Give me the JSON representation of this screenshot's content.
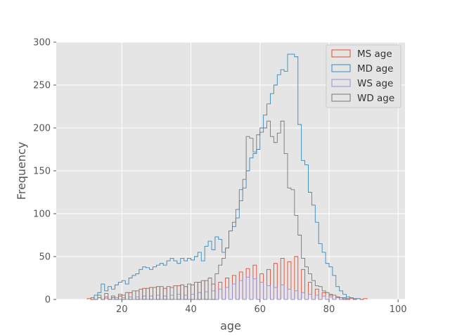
{
  "chart_data": {
    "type": "histogram",
    "style": "step",
    "title": "",
    "xlabel": "age",
    "ylabel": "Frequency",
    "xlim": [
      1,
      102
    ],
    "ylim": [
      0,
      300
    ],
    "xticks": [
      20,
      40,
      60,
      80,
      100
    ],
    "yticks": [
      0,
      50,
      100,
      150,
      200,
      250,
      300
    ],
    "grid": true,
    "legend": "top-right",
    "bin_width": 1,
    "series": [
      {
        "name": "MS age",
        "color": "#E24A33",
        "bins": [
          [
            10,
            1
          ],
          [
            13,
            2
          ],
          [
            15,
            3
          ],
          [
            17,
            2
          ],
          [
            19,
            4
          ],
          [
            20,
            5
          ],
          [
            22,
            8
          ],
          [
            24,
            10
          ],
          [
            26,
            13
          ],
          [
            28,
            14
          ],
          [
            30,
            15
          ],
          [
            32,
            13
          ],
          [
            34,
            14
          ],
          [
            36,
            16
          ],
          [
            38,
            15
          ],
          [
            40,
            17
          ],
          [
            42,
            20
          ],
          [
            44,
            22
          ],
          [
            46,
            18
          ],
          [
            48,
            20
          ],
          [
            50,
            25
          ],
          [
            52,
            28
          ],
          [
            54,
            32
          ],
          [
            56,
            36
          ],
          [
            58,
            40
          ],
          [
            60,
            30
          ],
          [
            62,
            35
          ],
          [
            64,
            42
          ],
          [
            66,
            48
          ],
          [
            68,
            44
          ],
          [
            70,
            50
          ],
          [
            72,
            35
          ],
          [
            74,
            20
          ],
          [
            76,
            12
          ],
          [
            78,
            8
          ],
          [
            80,
            5
          ],
          [
            82,
            3
          ],
          [
            84,
            2
          ],
          [
            86,
            1
          ],
          [
            88,
            1
          ],
          [
            90,
            1
          ]
        ]
      },
      {
        "name": "MD age",
        "color": "#348ABD",
        "bins": [
          [
            12,
            5
          ],
          [
            13,
            8
          ],
          [
            14,
            18
          ],
          [
            15,
            10
          ],
          [
            16,
            15
          ],
          [
            17,
            12
          ],
          [
            18,
            17
          ],
          [
            19,
            20
          ],
          [
            20,
            22
          ],
          [
            21,
            18
          ],
          [
            22,
            25
          ],
          [
            23,
            28
          ],
          [
            24,
            30
          ],
          [
            25,
            35
          ],
          [
            26,
            38
          ],
          [
            27,
            37
          ],
          [
            28,
            35
          ],
          [
            29,
            38
          ],
          [
            30,
            40
          ],
          [
            31,
            42
          ],
          [
            32,
            40
          ],
          [
            33,
            45
          ],
          [
            34,
            48
          ],
          [
            35,
            45
          ],
          [
            36,
            42
          ],
          [
            37,
            48
          ],
          [
            38,
            45
          ],
          [
            39,
            48
          ],
          [
            40,
            46
          ],
          [
            41,
            50
          ],
          [
            42,
            55
          ],
          [
            43,
            45
          ],
          [
            44,
            62
          ],
          [
            45,
            68
          ],
          [
            46,
            58
          ],
          [
            47,
            73
          ],
          [
            48,
            70
          ],
          [
            49,
            55
          ],
          [
            50,
            60
          ],
          [
            51,
            80
          ],
          [
            52,
            85
          ],
          [
            53,
            95
          ],
          [
            54,
            115
          ],
          [
            55,
            130
          ],
          [
            56,
            150
          ],
          [
            57,
            165
          ],
          [
            58,
            170
          ],
          [
            59,
            175
          ],
          [
            60,
            200
          ],
          [
            61,
            215
          ],
          [
            62,
            228
          ],
          [
            63,
            240
          ],
          [
            64,
            250
          ],
          [
            65,
            262
          ],
          [
            66,
            268
          ],
          [
            67,
            266
          ],
          [
            68,
            286
          ],
          [
            69,
            286
          ],
          [
            70,
            283
          ],
          [
            71,
            204
          ],
          [
            72,
            162
          ],
          [
            73,
            157
          ],
          [
            74,
            125
          ],
          [
            75,
            110
          ],
          [
            76,
            90
          ],
          [
            77,
            65
          ],
          [
            78,
            55
          ],
          [
            79,
            42
          ],
          [
            80,
            38
          ],
          [
            81,
            28
          ],
          [
            82,
            15
          ],
          [
            83,
            10
          ],
          [
            84,
            6
          ],
          [
            85,
            3
          ],
          [
            86,
            2
          ],
          [
            87,
            1
          ],
          [
            88,
            1
          ]
        ]
      },
      {
        "name": "WS age",
        "color": "#988ED5",
        "bins": [
          [
            15,
            1
          ],
          [
            18,
            2
          ],
          [
            20,
            2
          ],
          [
            22,
            3
          ],
          [
            24,
            3
          ],
          [
            26,
            4
          ],
          [
            28,
            4
          ],
          [
            30,
            5
          ],
          [
            32,
            4
          ],
          [
            34,
            5
          ],
          [
            36,
            6
          ],
          [
            38,
            5
          ],
          [
            40,
            6
          ],
          [
            42,
            8
          ],
          [
            44,
            9
          ],
          [
            46,
            10
          ],
          [
            48,
            12
          ],
          [
            50,
            14
          ],
          [
            52,
            18
          ],
          [
            54,
            22
          ],
          [
            56,
            26
          ],
          [
            58,
            24
          ],
          [
            60,
            20
          ],
          [
            62,
            16
          ],
          [
            64,
            14
          ],
          [
            66,
            17
          ],
          [
            68,
            12
          ],
          [
            70,
            10
          ],
          [
            72,
            8
          ],
          [
            74,
            6
          ],
          [
            76,
            5
          ],
          [
            78,
            4
          ],
          [
            80,
            3
          ],
          [
            82,
            2
          ],
          [
            84,
            1
          ]
        ]
      },
      {
        "name": "WD age",
        "color": "#777777",
        "bins": [
          [
            11,
            2
          ],
          [
            13,
            5
          ],
          [
            15,
            7
          ],
          [
            17,
            4
          ],
          [
            19,
            6
          ],
          [
            21,
            8
          ],
          [
            23,
            10
          ],
          [
            25,
            12
          ],
          [
            27,
            13
          ],
          [
            29,
            14
          ],
          [
            31,
            15
          ],
          [
            33,
            15
          ],
          [
            35,
            16
          ],
          [
            37,
            17
          ],
          [
            39,
            18
          ],
          [
            41,
            20
          ],
          [
            43,
            22
          ],
          [
            45,
            25
          ],
          [
            47,
            30
          ],
          [
            48,
            40
          ],
          [
            49,
            48
          ],
          [
            50,
            60
          ],
          [
            51,
            80
          ],
          [
            52,
            90
          ],
          [
            53,
            105
          ],
          [
            54,
            128
          ],
          [
            55,
            140
          ],
          [
            56,
            190
          ],
          [
            57,
            188
          ],
          [
            58,
            172
          ],
          [
            59,
            192
          ],
          [
            60,
            195
          ],
          [
            61,
            200
          ],
          [
            62,
            208
          ],
          [
            63,
            190
          ],
          [
            64,
            183
          ],
          [
            65,
            194
          ],
          [
            66,
            208
          ],
          [
            67,
            170
          ],
          [
            68,
            130
          ],
          [
            69,
            128
          ],
          [
            70,
            98
          ],
          [
            71,
            75
          ],
          [
            72,
            48
          ],
          [
            73,
            38
          ],
          [
            74,
            30
          ],
          [
            75,
            22
          ],
          [
            76,
            16
          ],
          [
            77,
            15
          ],
          [
            78,
            10
          ],
          [
            79,
            8
          ],
          [
            80,
            6
          ],
          [
            81,
            5
          ],
          [
            82,
            3
          ],
          [
            83,
            2
          ],
          [
            85,
            1
          ]
        ]
      }
    ]
  }
}
